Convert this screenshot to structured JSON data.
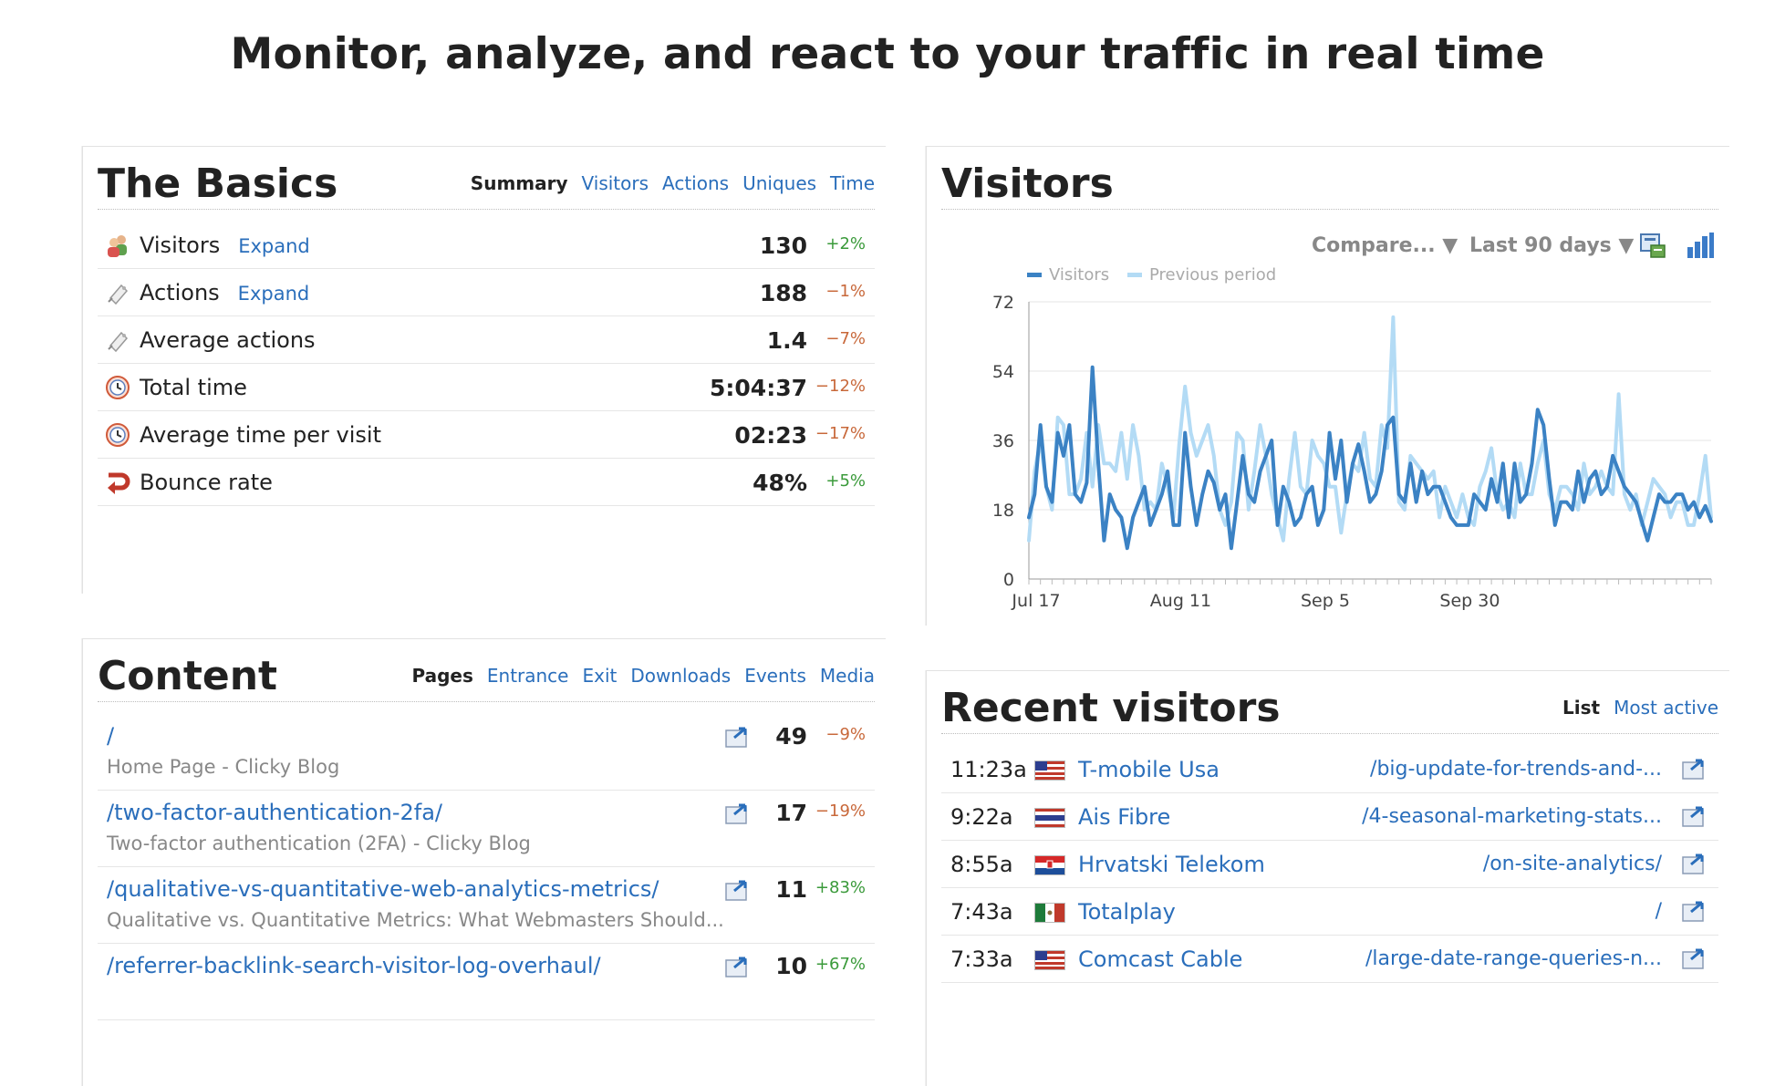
{
  "headline": "Monitor, analyze, and react to your traffic in real time",
  "basics": {
    "title": "The Basics",
    "tabs": [
      "Summary",
      "Visitors",
      "Actions",
      "Uniques",
      "Time"
    ],
    "active_tab": "Summary",
    "rows": [
      {
        "label": "Visitors",
        "expand": "Expand",
        "value": "130",
        "change": "+2%",
        "trend": "pos",
        "icon": "visitors-icon"
      },
      {
        "label": "Actions",
        "expand": "Expand",
        "value": "188",
        "change": "−1%",
        "trend": "neg",
        "icon": "actions-icon"
      },
      {
        "label": "Average actions",
        "expand": "",
        "value": "1.4",
        "change": "−7%",
        "trend": "neg",
        "icon": "actions-icon"
      },
      {
        "label": "Total time",
        "expand": "",
        "value": "5:04:37",
        "change": "−12%",
        "trend": "neg",
        "icon": "clock-icon"
      },
      {
        "label": "Average time per visit",
        "expand": "",
        "value": "02:23",
        "change": "−17%",
        "trend": "neg",
        "icon": "clock-icon"
      },
      {
        "label": "Bounce rate",
        "expand": "",
        "value": "48%",
        "change": "+5%",
        "trend": "pos",
        "icon": "bounce-icon"
      }
    ]
  },
  "visitors_panel": {
    "title": "Visitors",
    "compare_label": "Compare... ▼",
    "range_label": "Last 90 days ▼"
  },
  "chart_data": {
    "type": "line",
    "legend": [
      "Visitors",
      "Previous period"
    ],
    "x_ticks": [
      "Jul 17",
      "Aug 11",
      "Sep 5",
      "Sep 30"
    ],
    "y_ticks": [
      0,
      18,
      36,
      54,
      72
    ],
    "ylim": [
      0,
      72
    ],
    "grid": true,
    "series": [
      {
        "name": "Visitors",
        "color": "#3b82c4",
        "values": [
          16,
          22,
          40,
          24,
          20,
          38,
          32,
          40,
          22,
          20,
          25,
          55,
          30,
          10,
          22,
          18,
          16,
          8,
          16,
          20,
          24,
          14,
          18,
          22,
          28,
          14,
          14,
          38,
          24,
          14,
          22,
          28,
          25,
          18,
          22,
          8,
          20,
          32,
          22,
          20,
          28,
          32,
          36,
          14,
          24,
          20,
          14,
          16,
          22,
          24,
          14,
          18,
          38,
          26,
          36,
          20,
          30,
          35,
          28,
          20,
          22,
          28,
          40,
          42,
          22,
          20,
          30,
          20,
          28,
          22,
          24,
          24,
          20,
          16,
          14,
          14,
          14,
          22,
          20,
          18,
          26,
          20,
          30,
          16,
          30,
          20,
          22,
          30,
          44,
          40,
          26,
          14,
          20,
          20,
          18,
          28,
          20,
          26,
          28,
          22,
          24,
          32,
          28,
          24,
          22,
          20,
          15,
          10,
          16,
          22,
          20,
          20,
          22,
          22,
          18,
          20,
          16,
          19,
          15
        ]
      },
      {
        "name": "Previous period",
        "color": "#b3dbf5",
        "values": [
          10,
          28,
          36,
          24,
          18,
          42,
          40,
          22,
          22,
          26,
          38,
          24,
          40,
          30,
          30,
          28,
          38,
          26,
          40,
          32,
          18,
          20,
          18,
          30,
          24,
          16,
          35,
          50,
          38,
          32,
          36,
          40,
          32,
          18,
          14,
          20,
          38,
          36,
          18,
          28,
          40,
          32,
          22,
          16,
          10,
          26,
          38,
          24,
          22,
          36,
          32,
          30,
          24,
          24,
          12,
          22,
          30,
          28,
          38,
          26,
          24,
          40,
          34,
          68,
          20,
          18,
          32,
          30,
          28,
          26,
          28,
          16,
          24,
          20,
          16,
          22,
          16,
          14,
          24,
          28,
          34,
          22,
          18,
          20,
          16,
          30,
          22,
          22,
          30,
          36,
          22,
          18,
          24,
          24,
          22,
          18,
          30,
          22,
          24,
          28,
          24,
          22,
          48,
          22,
          18,
          22,
          14,
          20,
          26,
          24,
          22,
          16,
          20,
          20,
          14,
          14,
          22,
          32,
          16
        ]
      }
    ]
  },
  "content": {
    "title": "Content",
    "tabs": [
      "Pages",
      "Entrance",
      "Exit",
      "Downloads",
      "Events",
      "Media"
    ],
    "active_tab": "Pages",
    "rows": [
      {
        "path": "/",
        "title": "Home Page - Clicky Blog",
        "count": "49",
        "change": "−9%",
        "trend": "neg"
      },
      {
        "path": "/two-factor-authentication-2fa/",
        "title": "Two-factor authentication (2FA) - Clicky Blog",
        "count": "17",
        "change": "−19%",
        "trend": "neg"
      },
      {
        "path": "/qualitative-vs-quantitative-web-analytics-metrics/",
        "title": "Qualitative vs. Quantitative Metrics: What Webmasters Should...",
        "count": "11",
        "change": "+83%",
        "trend": "pos"
      },
      {
        "path": "/referrer-backlink-search-visitor-log-overhaul/",
        "title": "",
        "count": "10",
        "change": "+67%",
        "trend": "pos"
      }
    ]
  },
  "recent": {
    "title": "Recent visitors",
    "tabs": [
      "List",
      "Most active"
    ],
    "active_tab": "List",
    "rows": [
      {
        "time": "11:23a",
        "flag": "us",
        "org": "T-mobile Usa",
        "page": "/big-update-for-trends-and-..."
      },
      {
        "time": "9:22a",
        "flag": "th",
        "org": "Ais Fibre",
        "page": "/4-seasonal-marketing-stats..."
      },
      {
        "time": "8:55a",
        "flag": "hr",
        "org": "Hrvatski Telekom",
        "page": "/on-site-analytics/"
      },
      {
        "time": "7:43a",
        "flag": "mx",
        "org": "Totalplay",
        "page": "/"
      },
      {
        "time": "7:33a",
        "flag": "us",
        "org": "Comcast Cable",
        "page": "/large-date-range-queries-n..."
      }
    ]
  }
}
